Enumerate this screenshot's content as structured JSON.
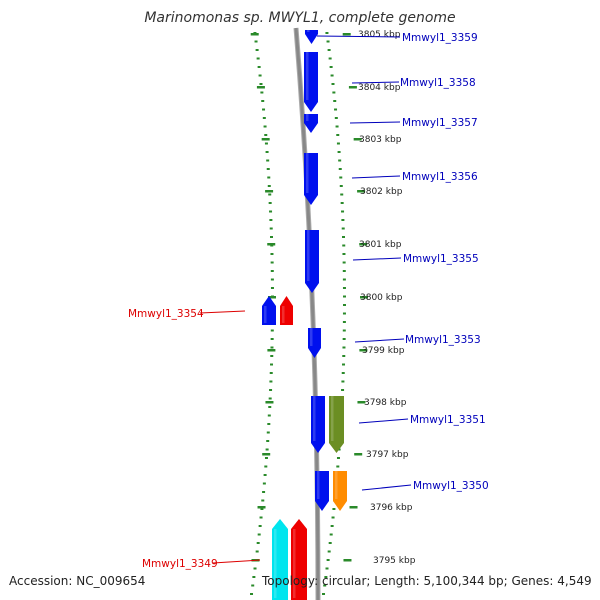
{
  "title": "Marinomonas sp. MWYL1, complete genome",
  "footer": {
    "accession": "Accession: NC_009654",
    "topology": "Topology: circular; Length: 5,100,344 bp; Genes: 4,549"
  },
  "colors": {
    "forward_label": "#0000bb",
    "reverse_label": "#dd0000",
    "forward_gene": "#0010ee",
    "reverse_gene": "#ee0000",
    "backbone": "#888888",
    "tick": "#2a8a2a"
  },
  "ruler": {
    "unit": "kbp",
    "ticks": [
      {
        "kbp": 3805,
        "label": "3805 kbp"
      },
      {
        "kbp": 3804,
        "label": "3804 kbp"
      },
      {
        "kbp": 3803,
        "label": "3803 kbp"
      },
      {
        "kbp": 3802,
        "label": "3802 kbp"
      },
      {
        "kbp": 3801,
        "label": "3801 kbp"
      },
      {
        "kbp": 3800,
        "label": "3800 kbp"
      },
      {
        "kbp": 3799,
        "label": "3799 kbp"
      },
      {
        "kbp": 3798,
        "label": "3798 kbp"
      },
      {
        "kbp": 3797,
        "label": "3797 kbp"
      },
      {
        "kbp": 3796,
        "label": "3796 kbp"
      },
      {
        "kbp": 3795,
        "label": "3795 kbp"
      }
    ]
  },
  "genes": [
    {
      "name": "Mmwyl1_3359",
      "strand": "forward",
      "track": "cds",
      "color": "#0010ee"
    },
    {
      "name": "Mmwyl1_3358",
      "strand": "forward",
      "track": "cds",
      "color": "#0010ee"
    },
    {
      "name": "Mmwyl1_3357",
      "strand": "forward",
      "track": "cds",
      "color": "#0010ee"
    },
    {
      "name": "Mmwyl1_3356",
      "strand": "forward",
      "track": "cds",
      "color": "#0010ee"
    },
    {
      "name": "Mmwyl1_3355",
      "strand": "forward",
      "track": "cds",
      "color": "#0010ee"
    },
    {
      "name": "Mmwyl1_3354",
      "strand": "reverse",
      "track": "cds",
      "color": "#0010ee"
    },
    {
      "name": "Mmwyl1_3354",
      "strand": "reverse",
      "track": "gene",
      "color": "#ee0000"
    },
    {
      "name": "Mmwyl1_3353",
      "strand": "forward",
      "track": "cds",
      "color": "#0010ee"
    },
    {
      "name": "Mmwyl1_3351",
      "strand": "forward",
      "track": "cds",
      "color": "#0010ee"
    },
    {
      "name": "Mmwyl1_3351",
      "strand": "forward",
      "track": "feature",
      "color": "#6b8e23"
    },
    {
      "name": "Mmwyl1_3350",
      "strand": "forward",
      "track": "cds",
      "color": "#0010ee"
    },
    {
      "name": "Mmwyl1_3350",
      "strand": "forward",
      "track": "feature",
      "color": "#ff8c00"
    },
    {
      "name": "Mmwyl1_3349",
      "strand": "reverse",
      "track": "feature",
      "color": "#00e5ee"
    },
    {
      "name": "Mmwyl1_3349",
      "strand": "reverse",
      "track": "gene",
      "color": "#ee0000"
    }
  ]
}
